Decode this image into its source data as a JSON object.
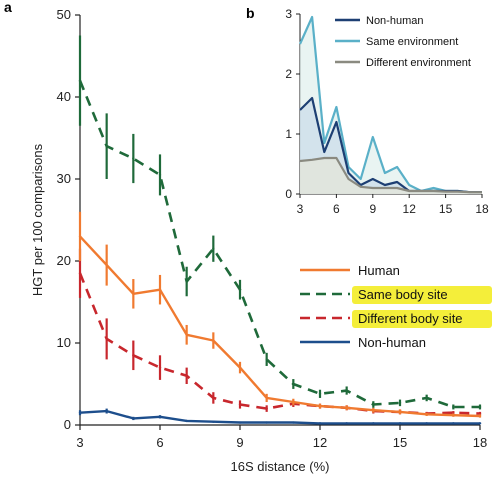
{
  "chart_data": [
    {
      "panel": "a",
      "type": "line",
      "xlabel": "16S distance (%)",
      "ylabel": "HGT per 100 comparisons",
      "xlim": [
        3,
        18
      ],
      "ylim": [
        0,
        50
      ],
      "xticks": [
        3,
        6,
        9,
        12,
        15,
        18
      ],
      "yticks": [
        0,
        10,
        20,
        30,
        40,
        50
      ],
      "legend_position": "center-right",
      "series": [
        {
          "name": "Human",
          "color": "#f07a30",
          "style": "solid",
          "x": [
            3,
            4,
            5,
            6,
            7,
            8,
            9,
            10,
            11,
            12,
            13,
            14,
            15,
            16,
            17,
            18
          ],
          "y": [
            23,
            19.5,
            16,
            16.5,
            11,
            10.3,
            7,
            3.3,
            2.8,
            2.3,
            2.1,
            1.8,
            1.6,
            1.3,
            1.2,
            1.1
          ],
          "err": [
            3,
            2.5,
            1.8,
            1.8,
            1.2,
            1,
            0.7,
            0.5,
            0.4,
            0.3,
            0.3,
            0.3,
            0.3,
            0.2,
            0.2,
            0.2
          ]
        },
        {
          "name": "Same body site",
          "color": "#1f6a3a",
          "style": "dashed",
          "x": [
            3,
            4,
            5,
            6,
            7,
            8,
            9,
            10,
            11,
            12,
            13,
            14,
            15,
            16,
            17,
            18
          ],
          "y": [
            42,
            34,
            32.5,
            30.5,
            17.5,
            21.5,
            16.5,
            8,
            5,
            3.8,
            4.2,
            2.5,
            2.7,
            3.3,
            2.2,
            2.2
          ],
          "err": [
            5.5,
            4,
            3,
            2.5,
            1.8,
            1.6,
            1.2,
            0.8,
            0.6,
            0.5,
            0.5,
            0.4,
            0.4,
            0.4,
            0.3,
            0.3
          ]
        },
        {
          "name": "Different body site",
          "color": "#c8272d",
          "style": "dashed",
          "x": [
            3,
            4,
            5,
            6,
            7,
            8,
            9,
            10,
            11,
            12,
            13,
            14,
            15,
            16,
            17,
            18
          ],
          "y": [
            18.5,
            10.5,
            8.5,
            7,
            6,
            3.3,
            2.5,
            2,
            2.6,
            2.3,
            2.1,
            1.7,
            1.6,
            1.4,
            1.5,
            1.4
          ],
          "err": [
            3,
            2.5,
            1.8,
            1.5,
            1,
            0.7,
            0.5,
            0.4,
            0.4,
            0.3,
            0.3,
            0.3,
            0.3,
            0.2,
            0.2,
            0.2
          ]
        },
        {
          "name": "Non-human",
          "color": "#1d4e8c",
          "style": "solid",
          "x": [
            3,
            4,
            5,
            6,
            7,
            8,
            9,
            10,
            11,
            12,
            13,
            14,
            15,
            16,
            17,
            18
          ],
          "y": [
            1.5,
            1.7,
            0.8,
            1,
            0.5,
            0.4,
            0.3,
            0.3,
            0.3,
            0.2,
            0.2,
            0.2,
            0.2,
            0.2,
            0.2,
            0.2
          ],
          "err": [
            0.3,
            0.3,
            0.2,
            0.2,
            0.1,
            0.1,
            0.1,
            0.1,
            0.1,
            0.1,
            0.1,
            0.1,
            0.1,
            0.1,
            0.1,
            0.1
          ]
        }
      ]
    },
    {
      "panel": "b",
      "type": "area",
      "xlim": [
        3,
        18
      ],
      "ylim": [
        0,
        3
      ],
      "xticks": [
        3,
        6,
        9,
        12,
        15,
        18
      ],
      "yticks": [
        0,
        1,
        2,
        3
      ],
      "legend_position": "top-right",
      "series": [
        {
          "name": "Non-human",
          "color": "#1d3f73",
          "x": [
            3,
            4,
            5,
            6,
            7,
            8,
            9,
            10,
            11,
            12,
            13,
            14,
            15,
            16,
            17,
            18
          ],
          "y": [
            1.4,
            1.6,
            0.7,
            1.2,
            0.35,
            0.15,
            0.25,
            0.15,
            0.2,
            0.05,
            0.05,
            0.05,
            0.05,
            0.05,
            0.03,
            0.03
          ]
        },
        {
          "name": "Same environment",
          "color": "#5ab0c8",
          "x": [
            3,
            4,
            5,
            6,
            7,
            8,
            9,
            10,
            11,
            12,
            13,
            14,
            15,
            16,
            17,
            18
          ],
          "y": [
            2.5,
            2.95,
            0.85,
            1.45,
            0.45,
            0.25,
            0.95,
            0.35,
            0.45,
            0.15,
            0.05,
            0.1,
            0.05,
            0.05,
            0.03,
            0.03
          ]
        },
        {
          "name": "Different environment",
          "color": "#8a8a80",
          "x": [
            3,
            4,
            5,
            6,
            7,
            8,
            9,
            10,
            11,
            12,
            13,
            14,
            15,
            16,
            17,
            18
          ],
          "y": [
            0.55,
            0.57,
            0.6,
            0.6,
            0.25,
            0.12,
            0.1,
            0.1,
            0.1,
            0.05,
            0.05,
            0.05,
            0.04,
            0.04,
            0.03,
            0.03
          ]
        }
      ]
    }
  ]
}
